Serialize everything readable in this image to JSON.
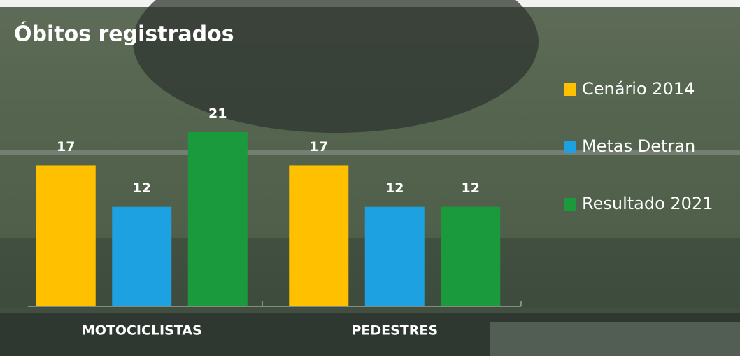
{
  "chart_data": {
    "type": "bar",
    "title": "Óbitos registrados",
    "categories": [
      "MOTOCICLISTAS",
      "PEDESTRES"
    ],
    "series": [
      {
        "name": "Cenário 2014",
        "color": "#ffc000",
        "values": [
          17,
          17
        ]
      },
      {
        "name": "Metas Detran",
        "color": "#1ea1e0",
        "values": [
          12,
          12
        ]
      },
      {
        "name": "Resultado 2021",
        "color": "#1b9a3d",
        "values": [
          21,
          12
        ]
      }
    ],
    "ylim": [
      0,
      21
    ],
    "legend": "right"
  }
}
